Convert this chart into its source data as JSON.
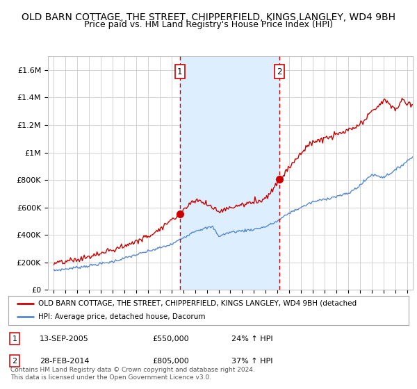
{
  "title": "OLD BARN COTTAGE, THE STREET, CHIPPERFIELD, KINGS LANGLEY, WD4 9BH",
  "subtitle": "Price paid vs. HM Land Registry's House Price Index (HPI)",
  "title_fontsize": 10,
  "subtitle_fontsize": 9,
  "ylim": [
    0,
    1700000
  ],
  "yticks": [
    0,
    200000,
    400000,
    600000,
    800000,
    1000000,
    1200000,
    1400000,
    1600000
  ],
  "ytick_labels": [
    "£0",
    "£200K",
    "£400K",
    "£600K",
    "£800K",
    "£1M",
    "£1.2M",
    "£1.4M",
    "£1.6M"
  ],
  "sale1_x": 2005.7,
  "sale1_y": 550000,
  "sale2_x": 2014.15,
  "sale2_y": 805000,
  "vline1_x": 2005.7,
  "vline2_x": 2014.15,
  "red_line_color": "#cc0000",
  "blue_line_color": "#5588cc",
  "shade_color": "#ddeeff",
  "marker_color": "#cc0000",
  "vline_color": "#cc0000",
  "background_color": "#ffffff",
  "grid_color": "#cccccc",
  "legend_label_red": "OLD BARN COTTAGE, THE STREET, CHIPPERFIELD, KINGS LANGLEY, WD4 9BH (detached",
  "legend_label_blue": "HPI: Average price, detached house, Dacorum",
  "table_rows": [
    [
      "1",
      "13-SEP-2005",
      "£550,000",
      "24% ↑ HPI"
    ],
    [
      "2",
      "28-FEB-2014",
      "£805,000",
      "37% ↑ HPI"
    ]
  ],
  "footer": "Contains HM Land Registry data © Crown copyright and database right 2024.\nThis data is licensed under the Open Government Licence v3.0.",
  "xmin": 1994.5,
  "xmax": 2025.5
}
